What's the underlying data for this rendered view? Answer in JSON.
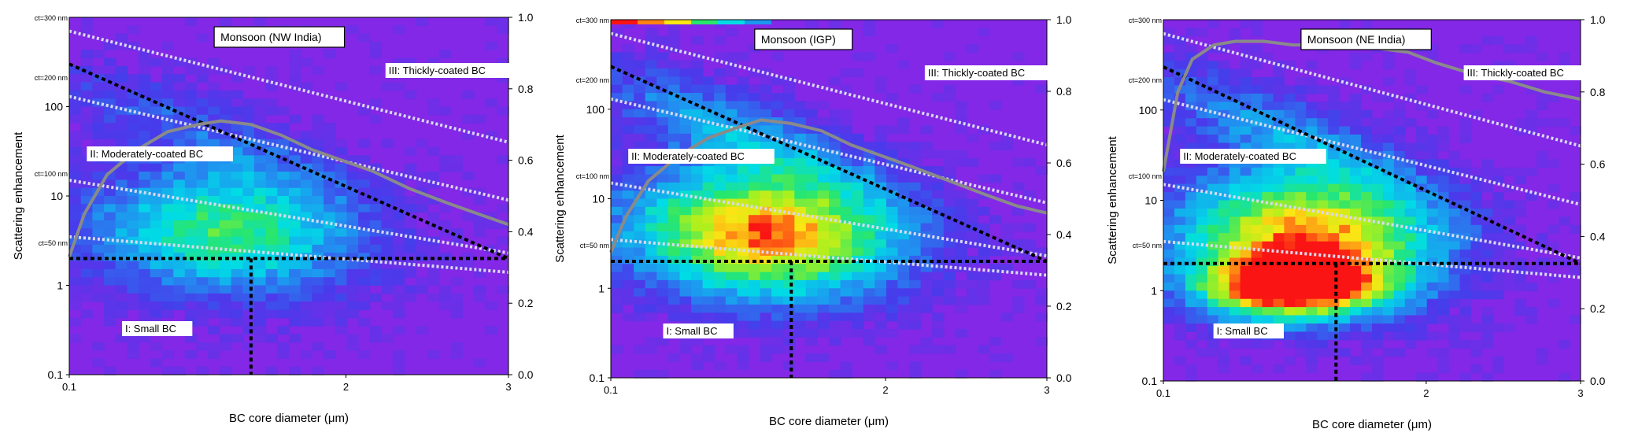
{
  "figure": {
    "panels": [
      {
        "title": "Monsoon (NW India)",
        "region_labels": [
          "III: Thickly-coated BC",
          "II: Moderately-coated BC",
          "I: Small BC"
        ],
        "ct_labels": [
          "ct=300 nm",
          "ct=200 nm",
          "ct=100 nm",
          "ct=50 nm"
        ],
        "ylabel": "Scattering enhancement",
        "xlabel": "BC core diameter (μm)",
        "x_tick_labels": [
          "0.1",
          "2",
          "3"
        ],
        "y_tick_labels": [
          "100",
          "10",
          "1",
          "0.1"
        ],
        "y2_tick_labels": [
          "1.0",
          "0.8",
          "0.6",
          "0.4",
          "0.2",
          "0.0"
        ],
        "hotspot": "low",
        "top_stripe": false
      },
      {
        "title": "Monsoon (IGP)",
        "region_labels": [
          "III: Thickly-coated BC",
          "II: Moderately-coated BC",
          "I: Small BC"
        ],
        "ct_labels": [
          "ct=300 nm",
          "ct=200 nm",
          "ct=100 nm",
          "ct=50 nm"
        ],
        "ylabel": "Scattering enhancement",
        "xlabel": "BC core diameter (μm)",
        "x_tick_labels": [
          "0.1",
          "2",
          "3"
        ],
        "y_tick_labels": [
          "100",
          "10",
          "1",
          "0.1"
        ],
        "y2_tick_labels": [
          "1.0",
          "0.8",
          "0.6",
          "0.4",
          "0.2",
          "0.0"
        ],
        "hotspot": "mid",
        "top_stripe": true
      },
      {
        "title": "Monsoon (NE India)",
        "region_labels": [
          "III: Thickly-coated BC",
          "II: Moderately-coated BC",
          "I: Small BC"
        ],
        "ct_labels": [
          "ct=300 nm",
          "ct=200 nm",
          "ct=100 nm",
          "ct=50 nm"
        ],
        "ylabel": "Scattering enhancement",
        "xlabel": "BC core diameter (μm)",
        "x_tick_labels": [
          "0.1",
          "2",
          "3"
        ],
        "y_tick_labels": [
          "100",
          "10",
          "1",
          "0.1"
        ],
        "y2_tick_labels": [
          "1.0",
          "0.8",
          "0.6",
          "0.4",
          "0.2",
          "0.0"
        ],
        "hotspot": "high",
        "top_stripe": false
      }
    ]
  },
  "chart_data": [
    {
      "type": "heatmap",
      "title": "Monsoon (NW India)",
      "xlabel": "BC core diameter (μm)",
      "ylabel": "Scattering enhancement",
      "xlim": [
        0.1,
        3
      ],
      "ylim": [
        0.1,
        1000
      ],
      "y2lim": [
        0.0,
        1.0
      ],
      "yscale": "log",
      "line_series": {
        "x": [
          0.1,
          0.2,
          0.35,
          0.55,
          0.75,
          0.95,
          1.1,
          1.3,
          1.5,
          1.7,
          1.9,
          2.1,
          2.35,
          2.6,
          2.8,
          3.0
        ],
        "y2": [
          0.33,
          0.45,
          0.56,
          0.63,
          0.68,
          0.7,
          0.71,
          0.7,
          0.67,
          0.63,
          0.6,
          0.57,
          0.52,
          0.48,
          0.45,
          0.42
        ]
      },
      "ct_lines": [
        {
          "name": "ct=300 nm",
          "y_start": 700,
          "y_end": 40
        },
        {
          "name": "ct=200 nm",
          "y_start": 130,
          "y_end": 9
        },
        {
          "name": "ct=100 nm",
          "y_start": 15,
          "y_end": 2.3
        },
        {
          "name": "ct=50 nm",
          "y_start": 3.5,
          "y_end": 1.4
        }
      ],
      "threshold_y": 2,
      "threshold_x": 1.3,
      "black_boundary": {
        "y_start": 300,
        "y_end": 2
      }
    },
    {
      "type": "heatmap",
      "title": "Monsoon (IGP)",
      "xlabel": "BC core diameter (μm)",
      "ylabel": "Scattering enhancement",
      "xlim": [
        0.1,
        3
      ],
      "ylim": [
        0.1,
        1000
      ],
      "y2lim": [
        0.0,
        1.0
      ],
      "yscale": "log",
      "line_series": {
        "x": [
          0.1,
          0.2,
          0.35,
          0.55,
          0.75,
          0.95,
          1.1,
          1.3,
          1.5,
          1.7,
          1.9,
          2.1,
          2.35,
          2.6,
          2.8,
          3.0
        ],
        "y2": [
          0.35,
          0.45,
          0.55,
          0.62,
          0.67,
          0.7,
          0.72,
          0.71,
          0.69,
          0.65,
          0.62,
          0.59,
          0.55,
          0.51,
          0.48,
          0.46
        ]
      },
      "ct_lines": [
        {
          "name": "ct=300 nm",
          "y_start": 700,
          "y_end": 40
        },
        {
          "name": "ct=200 nm",
          "y_start": 130,
          "y_end": 9
        },
        {
          "name": "ct=100 nm",
          "y_start": 15,
          "y_end": 2.3
        },
        {
          "name": "ct=50 nm",
          "y_start": 3.5,
          "y_end": 1.4
        }
      ],
      "threshold_y": 2,
      "threshold_x": 1.3,
      "black_boundary": {
        "y_start": 300,
        "y_end": 2
      }
    },
    {
      "type": "heatmap",
      "title": "Monsoon (NE India)",
      "xlabel": "BC core diameter (μm)",
      "ylabel": "Scattering enhancement",
      "xlim": [
        0.1,
        3
      ],
      "ylim": [
        0.1,
        1000
      ],
      "y2lim": [
        0.0,
        1.0
      ],
      "yscale": "log",
      "line_series": {
        "x": [
          0.1,
          0.2,
          0.3,
          0.45,
          0.6,
          0.8,
          1.0,
          1.2,
          1.4,
          1.6,
          1.8,
          2.0,
          2.25,
          2.5,
          2.75,
          3.0
        ],
        "y2": [
          0.58,
          0.8,
          0.89,
          0.93,
          0.94,
          0.94,
          0.93,
          0.93,
          0.93,
          0.92,
          0.91,
          0.88,
          0.85,
          0.83,
          0.8,
          0.78
        ]
      },
      "ct_lines": [
        {
          "name": "ct=300 nm",
          "y_start": 700,
          "y_end": 40
        },
        {
          "name": "ct=200 nm",
          "y_start": 130,
          "y_end": 9
        },
        {
          "name": "ct=100 nm",
          "y_start": 15,
          "y_end": 2.3
        },
        {
          "name": "ct=50 nm",
          "y_start": 3.5,
          "y_end": 1.4
        }
      ],
      "threshold_y": 2,
      "threshold_x": 1.3,
      "black_boundary": {
        "y_start": 300,
        "y_end": 2
      }
    }
  ]
}
